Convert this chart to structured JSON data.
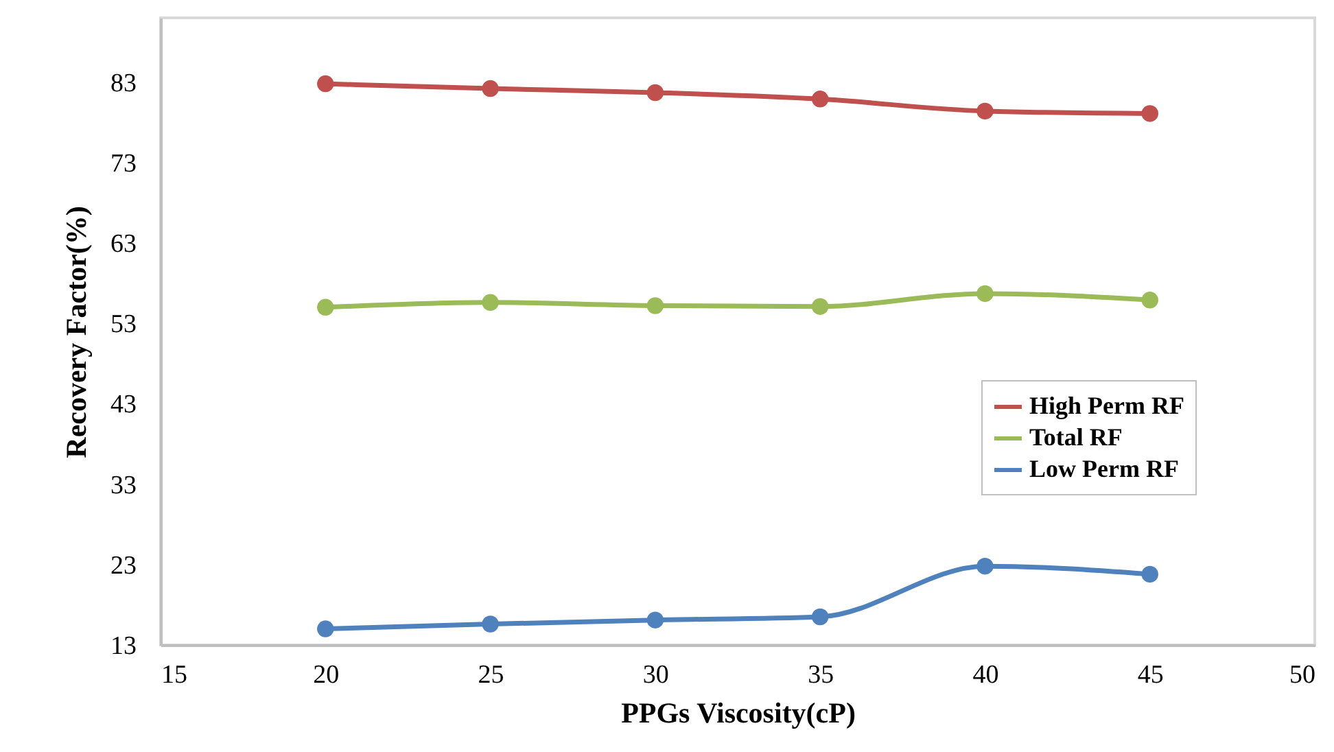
{
  "chart_data": {
    "type": "line",
    "xlabel": "PPGs Viscosity(cP)",
    "ylabel": "Recovery Factor(%)",
    "x": [
      20,
      25,
      30,
      35,
      40,
      45
    ],
    "series": [
      {
        "name": "High Perm RF",
        "color": "#c0504d",
        "values": [
          82.8,
          82.2,
          81.7,
          80.9,
          79.4,
          79.1
        ]
      },
      {
        "name": "Total RF",
        "color": "#9bbb59",
        "values": [
          55.0,
          55.6,
          55.2,
          55.1,
          56.7,
          55.9
        ]
      },
      {
        "name": "Low Perm RF",
        "color": "#4f81bd",
        "values": [
          15.0,
          15.6,
          16.1,
          16.5,
          22.8,
          21.8
        ]
      }
    ],
    "xlim": [
      15,
      50
    ],
    "xticks": [
      15,
      20,
      25,
      30,
      35,
      40,
      45,
      50
    ],
    "ylim": [
      13,
      91
    ],
    "yticks": [
      13,
      23,
      33,
      43,
      53,
      63,
      73,
      83
    ],
    "grid": false,
    "legend": "right",
    "marker": "circle",
    "line_style": "solid"
  }
}
